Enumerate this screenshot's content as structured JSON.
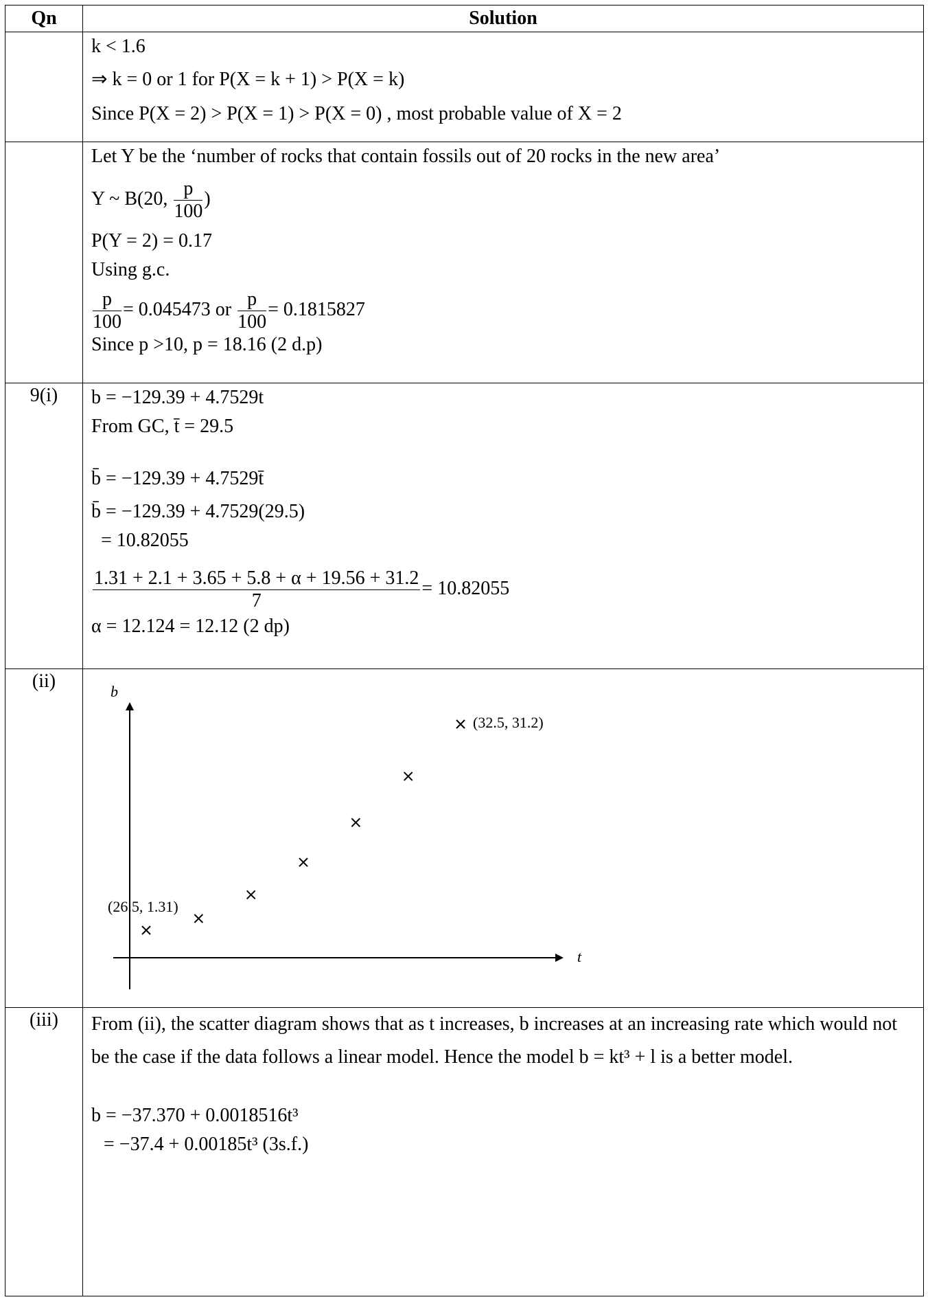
{
  "header": {
    "qn": "Qn",
    "solution": "Solution"
  },
  "row1": {
    "qn": "",
    "l1": "k < 1.6",
    "l2": "⇒  k = 0 or 1 for  P(X = k + 1) > P(X = k)",
    "l3": "Since  P(X = 2) > P(X = 1) > P(X = 0) , most probable value of X = 2"
  },
  "row2": {
    "qn": "",
    "l1": "Let Y be the ‘number of rocks that contain fossils out of 20 rocks in the new area’",
    "l2a": "Y ~ B(20, ",
    "l2num": "p",
    "l2den": "100",
    "l2b": ")",
    "l3": "P(Y = 2) = 0.17",
    "l4": "Using g.c.",
    "l5num": "p",
    "l5den": "100",
    "l5a": "= 0.045473  or ",
    "l5b": "= 0.1815827",
    "l6": "Since p >10, p = 18.16  (2 d.p)"
  },
  "row3": {
    "qn": "9(i)",
    "l1": "b = −129.39 + 4.7529t",
    "l2": "From GC, t̄ = 29.5",
    "l3": "b̄ = −129.39 + 4.7529t̄",
    "l4": "b̄ = −129.39 + 4.7529(29.5)",
    "l5": "= 10.82055",
    "l6num": "1.31 + 2.1 + 3.65 + 5.8 + α + 19.56 + 31.2",
    "l6den": "7",
    "l6b": "= 10.82055",
    "l7": "α = 12.124 = 12.12 (2 dp)"
  },
  "row4": {
    "qn": "(ii)",
    "y_axis_label": "b",
    "x_axis_label": "t",
    "first_point_label": "(26.5, 1.31)",
    "last_point_label": "(32.5, 31.2)"
  },
  "chart_data": {
    "type": "scatter",
    "xlabel": "t",
    "ylabel": "b",
    "marker": "×",
    "x": [
      26.5,
      27.5,
      28.5,
      29.5,
      30.5,
      31.5,
      32.5
    ],
    "y": [
      1.31,
      2.1,
      3.65,
      5.8,
      12.12,
      19.56,
      31.2
    ],
    "annotations": [
      "(26.5, 1.31)",
      "(32.5, 31.2)"
    ]
  },
  "row5": {
    "qn": "(iii)",
    "p1": "From (ii), the scatter diagram shows that as t increases, b increases at an increasing rate which would not be the case if the data follows a linear model. Hence the model  b = kt³ + l  is a better model.",
    "l2": "b = −37.370 + 0.0018516t³",
    "l3": "= −37.4 + 0.00185t³  (3s.f.)"
  }
}
